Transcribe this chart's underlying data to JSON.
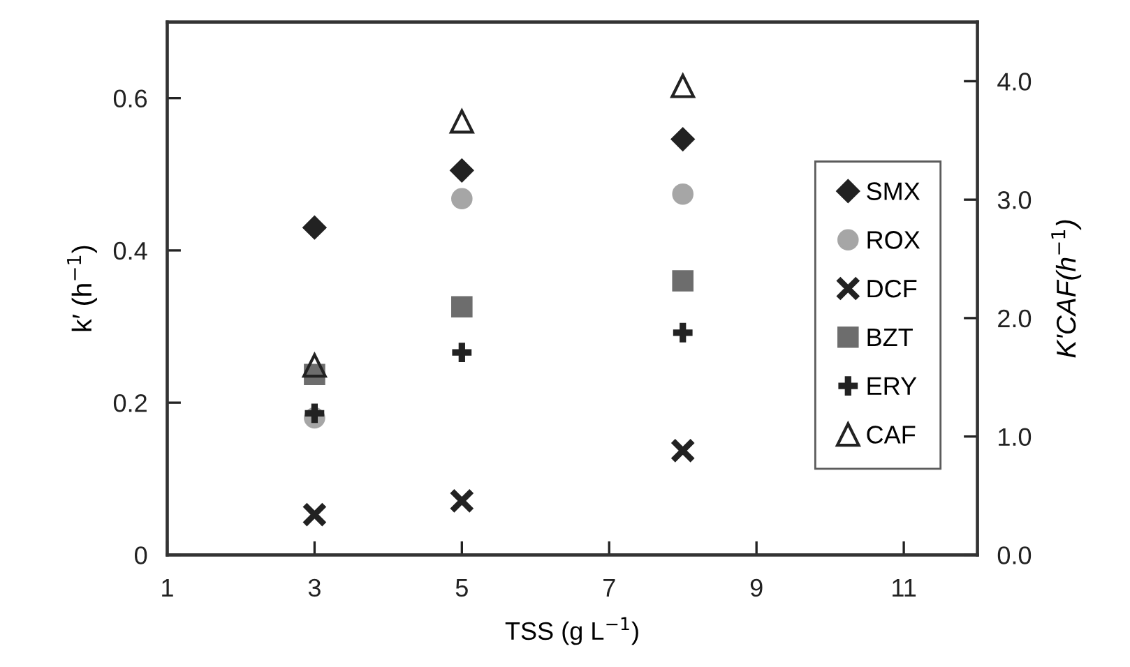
{
  "chart_data": {
    "type": "scatter",
    "xlabel": "TSS (g L$^{−1}$)",
    "ylabel": "k′ (h$^{−1}$)",
    "y2label": "K'CAF(h$^{−1}$)",
    "x": [
      3,
      5,
      8
    ],
    "xlim": [
      1,
      12
    ],
    "xticks": [
      1,
      3,
      5,
      7,
      9,
      11
    ],
    "ylim": [
      0,
      0.7
    ],
    "yticks": [
      0,
      0.2,
      0.4,
      0.6
    ],
    "y2lim": [
      0,
      4.5
    ],
    "y2ticks": [
      {
        "value": 0,
        "label": "0.0"
      },
      {
        "value": 1,
        "label": "1.0"
      },
      {
        "value": 2,
        "label": "2.0"
      },
      {
        "value": 3,
        "label": "3.0"
      },
      {
        "value": 4,
        "label": "4.0"
      }
    ],
    "grid": false,
    "legend": "right",
    "series": [
      {
        "name": "SMX",
        "color": "#222222",
        "marker": "diamond",
        "values": [
          0.43,
          0.505,
          0.546
        ]
      },
      {
        "name": "ROX",
        "color": "#a6a6a6",
        "marker": "circle",
        "values": [
          0.18,
          0.468,
          0.474
        ]
      },
      {
        "name": "DCF",
        "color": "#222222",
        "marker": "cross",
        "values": [
          0.053,
          0.071,
          0.137
        ]
      },
      {
        "name": "BZT",
        "color": "#6d6d6d",
        "marker": "square",
        "values": [
          0.237,
          0.326,
          0.36
        ]
      },
      {
        "name": "ERY",
        "color": "#222222",
        "marker": "plus",
        "values": [
          0.186,
          0.266,
          0.292
        ]
      },
      {
        "name": "CAF",
        "color": "#222222",
        "marker": "triangle-open",
        "axis": "y2",
        "values": [
          1.6,
          3.66,
          3.96
        ]
      }
    ]
  }
}
